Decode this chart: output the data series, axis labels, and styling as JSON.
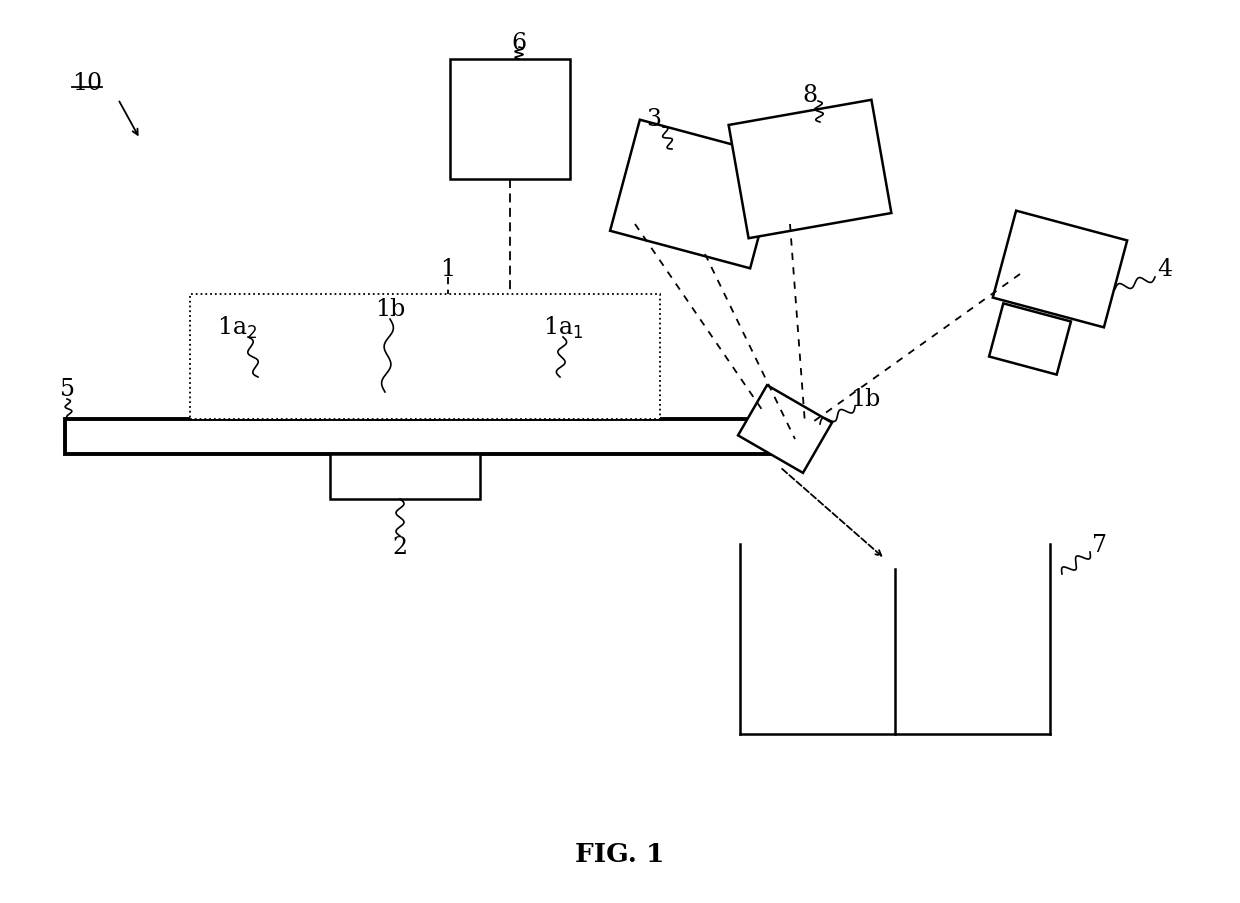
{
  "title": "FIG. 1",
  "bg_color": "#ffffff",
  "line_color": "#000000",
  "fig_width": 12.4,
  "fig_height": 9.04,
  "dpi": 100
}
